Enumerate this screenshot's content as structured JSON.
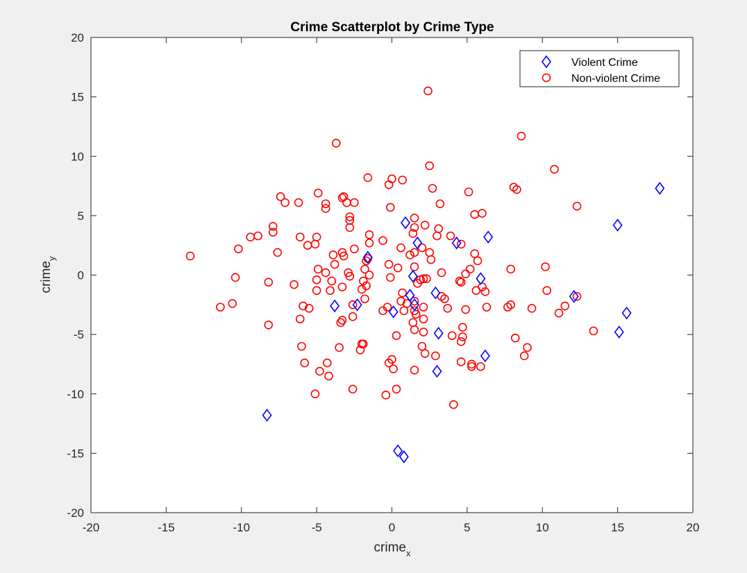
{
  "chart_data": {
    "type": "scatter",
    "title": "Crime Scatterplot by Crime Type",
    "xlabel": {
      "base": "crime",
      "subscript": "x"
    },
    "ylabel": {
      "base": "crime",
      "subscript": "y"
    },
    "xlim": [
      -20,
      20
    ],
    "ylim": [
      -20,
      20
    ],
    "xticks": [
      -20,
      -15,
      -10,
      -5,
      0,
      5,
      10,
      15,
      20
    ],
    "yticks": [
      -20,
      -15,
      -10,
      -5,
      0,
      5,
      10,
      15,
      20
    ],
    "grid": false,
    "legend_position": "top-right",
    "series": [
      {
        "name": "Violent Crime",
        "marker": "diamond",
        "color": "#0000ff",
        "points": [
          [
            17.8,
            7.3
          ],
          [
            15.0,
            4.2
          ],
          [
            15.6,
            -3.2
          ],
          [
            15.1,
            -4.8
          ],
          [
            12.1,
            -1.8
          ],
          [
            6.4,
            3.2
          ],
          [
            5.9,
            -0.3
          ],
          [
            6.2,
            -6.8
          ],
          [
            4.3,
            2.7
          ],
          [
            3.1,
            -4.9
          ],
          [
            3.0,
            -8.1
          ],
          [
            2.9,
            -1.5
          ],
          [
            1.7,
            2.7
          ],
          [
            1.4,
            -0.1
          ],
          [
            1.5,
            -2.5
          ],
          [
            1.2,
            -1.7
          ],
          [
            0.9,
            4.4
          ],
          [
            -1.6,
            1.5
          ],
          [
            -2.3,
            -2.5
          ],
          [
            -3.8,
            -2.6
          ],
          [
            0.1,
            -3.1
          ],
          [
            -8.3,
            -11.8
          ],
          [
            0.4,
            -14.8
          ],
          [
            0.8,
            -15.3
          ]
        ]
      },
      {
        "name": "Non-violent Crime",
        "marker": "circle",
        "color": "#ff0000",
        "points": [
          [
            2.4,
            15.5
          ],
          [
            -3.7,
            11.1
          ],
          [
            8.6,
            11.7
          ],
          [
            2.5,
            9.2
          ],
          [
            10.8,
            8.9
          ],
          [
            -1.6,
            8.2
          ],
          [
            0.0,
            8.1
          ],
          [
            0.7,
            8.0
          ],
          [
            -0.2,
            7.6
          ],
          [
            2.7,
            7.3
          ],
          [
            8.1,
            7.4
          ],
          [
            8.3,
            7.2
          ],
          [
            5.1,
            7.0
          ],
          [
            -4.9,
            6.9
          ],
          [
            -7.4,
            6.6
          ],
          [
            -7.1,
            6.1
          ],
          [
            -6.2,
            6.1
          ],
          [
            -4.4,
            6.0
          ],
          [
            -4.4,
            5.6
          ],
          [
            -3.2,
            6.6
          ],
          [
            -3.3,
            6.5
          ],
          [
            -3.0,
            6.1
          ],
          [
            -2.5,
            6.1
          ],
          [
            3.2,
            6.0
          ],
          [
            12.3,
            5.8
          ],
          [
            -0.1,
            5.7
          ],
          [
            5.5,
            5.1
          ],
          [
            6.0,
            5.2
          ],
          [
            -2.8,
            4.9
          ],
          [
            -2.8,
            4.6
          ],
          [
            1.5,
            4.8
          ],
          [
            -7.9,
            4.1
          ],
          [
            -7.9,
            3.6
          ],
          [
            -2.8,
            4.0
          ],
          [
            1.5,
            4.0
          ],
          [
            2.2,
            4.2
          ],
          [
            3.1,
            3.9
          ],
          [
            -9.4,
            3.2
          ],
          [
            -8.9,
            3.3
          ],
          [
            -6.1,
            3.2
          ],
          [
            -5.0,
            3.2
          ],
          [
            -1.5,
            3.4
          ],
          [
            1.4,
            3.5
          ],
          [
            3.0,
            3.3
          ],
          [
            3.9,
            3.3
          ],
          [
            -5.1,
            2.6
          ],
          [
            -5.6,
            2.5
          ],
          [
            -1.5,
            2.7
          ],
          [
            -0.6,
            2.9
          ],
          [
            2.0,
            2.3
          ],
          [
            4.6,
            2.6
          ],
          [
            -10.2,
            2.2
          ],
          [
            -7.6,
            1.9
          ],
          [
            -3.3,
            1.9
          ],
          [
            -3.9,
            1.7
          ],
          [
            -3.2,
            1.6
          ],
          [
            -2.5,
            2.2
          ],
          [
            -1.6,
            1.4
          ],
          [
            -1.7,
            1.2
          ],
          [
            1.2,
            1.7
          ],
          [
            0.6,
            2.3
          ],
          [
            1.5,
            1.9
          ],
          [
            2.5,
            1.9
          ],
          [
            2.6,
            1.3
          ],
          [
            5.5,
            1.8
          ],
          [
            5.7,
            1.2
          ],
          [
            -13.4,
            1.6
          ],
          [
            -4.9,
            0.5
          ],
          [
            -4.4,
            0.2
          ],
          [
            -3.8,
            0.9
          ],
          [
            -2.9,
            0.2
          ],
          [
            -1.8,
            0.5
          ],
          [
            -1.5,
            0.0
          ],
          [
            -2.8,
            -0.1
          ],
          [
            -0.2,
            0.9
          ],
          [
            0.4,
            0.6
          ],
          [
            1.5,
            0.7
          ],
          [
            3.3,
            0.2
          ],
          [
            4.9,
            0.1
          ],
          [
            5.2,
            0.5
          ],
          [
            7.9,
            0.5
          ],
          [
            10.2,
            0.7
          ],
          [
            -10.4,
            -0.2
          ],
          [
            -8.2,
            -0.6
          ],
          [
            -4.0,
            -0.5
          ],
          [
            -1.9,
            -0.5
          ],
          [
            -1.7,
            -0.9
          ],
          [
            -0.1,
            -0.2
          ],
          [
            1.9,
            -0.4
          ],
          [
            2.1,
            -0.3
          ],
          [
            2.3,
            -0.3
          ],
          [
            4.5,
            -0.5
          ],
          [
            4.6,
            -0.6
          ],
          [
            5.6,
            -1.3
          ],
          [
            6.0,
            -1.0
          ],
          [
            6.2,
            -1.4
          ],
          [
            -6.5,
            -0.8
          ],
          [
            -5.0,
            -0.4
          ],
          [
            -5.0,
            -1.3
          ],
          [
            -4.1,
            -1.3
          ],
          [
            -3.3,
            -1.0
          ],
          [
            -2.0,
            -1.2
          ],
          [
            -1.8,
            -2.0
          ],
          [
            0.7,
            -1.5
          ],
          [
            1.7,
            -0.7
          ],
          [
            3.3,
            -1.8
          ],
          [
            3.5,
            -2.0
          ],
          [
            3.7,
            -2.8
          ],
          [
            10.3,
            -1.3
          ],
          [
            12.3,
            -1.8
          ],
          [
            -11.4,
            -2.7
          ],
          [
            -10.6,
            -2.4
          ],
          [
            -5.9,
            -2.6
          ],
          [
            -5.5,
            -2.8
          ],
          [
            -2.6,
            -2.5
          ],
          [
            -0.6,
            -3.0
          ],
          [
            -0.3,
            -2.7
          ],
          [
            0.6,
            -2.2
          ],
          [
            1.0,
            -2.4
          ],
          [
            1.5,
            -2.2
          ],
          [
            2.1,
            -2.7
          ],
          [
            0.8,
            -3.0
          ],
          [
            1.5,
            -3.0
          ],
          [
            4.9,
            -2.9
          ],
          [
            6.3,
            -2.7
          ],
          [
            7.7,
            -2.7
          ],
          [
            7.9,
            -2.5
          ],
          [
            9.3,
            -2.8
          ],
          [
            11.1,
            -3.2
          ],
          [
            11.5,
            -2.6
          ],
          [
            -6.1,
            -3.7
          ],
          [
            -3.4,
            -4.0
          ],
          [
            -3.3,
            -3.8
          ],
          [
            -2.6,
            -3.5
          ],
          [
            1.6,
            -3.3
          ],
          [
            2.1,
            -3.7
          ],
          [
            -8.2,
            -4.2
          ],
          [
            1.4,
            -4.0
          ],
          [
            1.5,
            -4.6
          ],
          [
            2.1,
            -4.8
          ],
          [
            4.0,
            -5.1
          ],
          [
            4.7,
            -4.4
          ],
          [
            4.7,
            -5.2
          ],
          [
            4.6,
            -5.6
          ],
          [
            13.4,
            -4.7
          ],
          [
            0.3,
            -5.1
          ],
          [
            8.2,
            -5.3
          ],
          [
            -6.0,
            -6.0
          ],
          [
            -3.5,
            -6.1
          ],
          [
            -1.9,
            -5.8
          ],
          [
            -2.0,
            -5.8
          ],
          [
            -2.1,
            -6.3
          ],
          [
            2.0,
            -6.0
          ],
          [
            2.2,
            -6.6
          ],
          [
            2.9,
            -6.8
          ],
          [
            -5.8,
            -7.4
          ],
          [
            -4.3,
            -7.4
          ],
          [
            -0.2,
            -7.4
          ],
          [
            0.0,
            -7.1
          ],
          [
            4.6,
            -7.3
          ],
          [
            5.3,
            -7.5
          ],
          [
            5.3,
            -7.7
          ],
          [
            5.9,
            -7.7
          ],
          [
            8.8,
            -6.8
          ],
          [
            9.0,
            -6.1
          ],
          [
            -4.8,
            -8.1
          ],
          [
            -4.2,
            -8.5
          ],
          [
            0.1,
            -7.9
          ],
          [
            1.5,
            -8.0
          ],
          [
            -5.1,
            -10.0
          ],
          [
            -2.6,
            -9.6
          ],
          [
            -0.4,
            -10.1
          ],
          [
            0.3,
            -9.6
          ],
          [
            4.1,
            -10.9
          ]
        ]
      }
    ]
  }
}
